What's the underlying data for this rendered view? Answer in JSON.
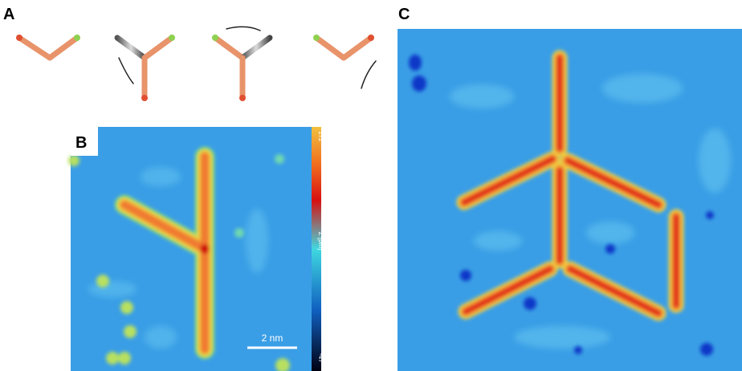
{
  "panels": [
    {
      "label": "A"
    },
    {
      "label": "B",
      "scale_bar": "2 nm",
      "colorbar": {
        "max": 172,
        "label": "Z [pm]",
        "min": -47
      }
    },
    {
      "label": "C"
    }
  ]
}
